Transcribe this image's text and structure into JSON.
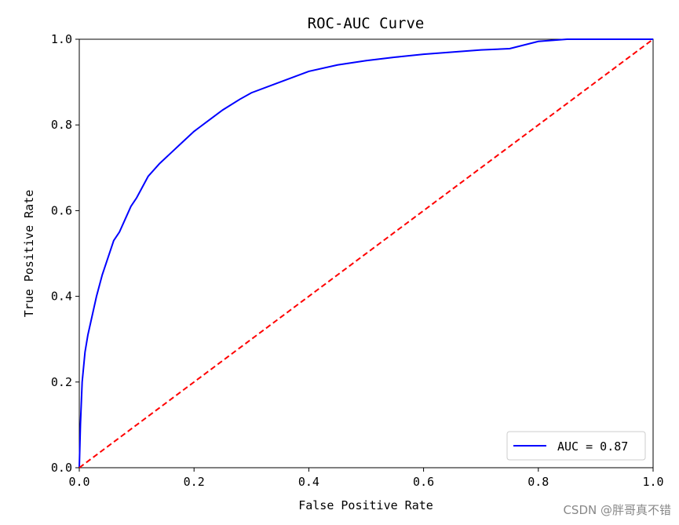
{
  "chart_data": {
    "type": "line",
    "title": "ROC-AUC Curve",
    "xlabel": "False Positive Rate",
    "ylabel": "True Positive Rate",
    "xlim": [
      0.0,
      1.0
    ],
    "ylim": [
      0.0,
      1.0
    ],
    "xticks": [
      "0.0",
      "0.2",
      "0.4",
      "0.6",
      "0.8",
      "1.0"
    ],
    "yticks": [
      "0.0",
      "0.2",
      "0.4",
      "0.6",
      "0.8",
      "1.0"
    ],
    "xtick_values": [
      0.0,
      0.2,
      0.4,
      0.6,
      0.8,
      1.0
    ],
    "ytick_values": [
      0.0,
      0.2,
      0.4,
      0.6,
      0.8,
      1.0
    ],
    "grid": false,
    "legend": {
      "placement": "bottom-right",
      "entries": [
        "AUC = 0.87"
      ]
    },
    "series": [
      {
        "name": "AUC = 0.87",
        "color": "#0000ff",
        "style": "solid",
        "x": [
          0.0,
          0.002,
          0.005,
          0.01,
          0.015,
          0.02,
          0.03,
          0.04,
          0.05,
          0.06,
          0.07,
          0.08,
          0.09,
          0.1,
          0.12,
          0.14,
          0.16,
          0.18,
          0.2,
          0.22,
          0.25,
          0.28,
          0.3,
          0.35,
          0.4,
          0.45,
          0.5,
          0.55,
          0.6,
          0.65,
          0.7,
          0.75,
          0.8,
          0.85,
          0.9,
          0.95,
          1.0
        ],
        "y": [
          0.0,
          0.1,
          0.2,
          0.27,
          0.31,
          0.34,
          0.4,
          0.45,
          0.49,
          0.53,
          0.55,
          0.58,
          0.61,
          0.63,
          0.68,
          0.71,
          0.735,
          0.76,
          0.785,
          0.805,
          0.835,
          0.86,
          0.875,
          0.9,
          0.925,
          0.94,
          0.95,
          0.958,
          0.965,
          0.97,
          0.975,
          0.978,
          0.995,
          1.0,
          1.0,
          1.0,
          1.0
        ]
      },
      {
        "name": "",
        "color": "#ff0000",
        "style": "dashed",
        "x": [
          0.0,
          1.0
        ],
        "y": [
          0.0,
          1.0
        ]
      }
    ]
  },
  "watermark": "CSDN @胖哥真不错"
}
